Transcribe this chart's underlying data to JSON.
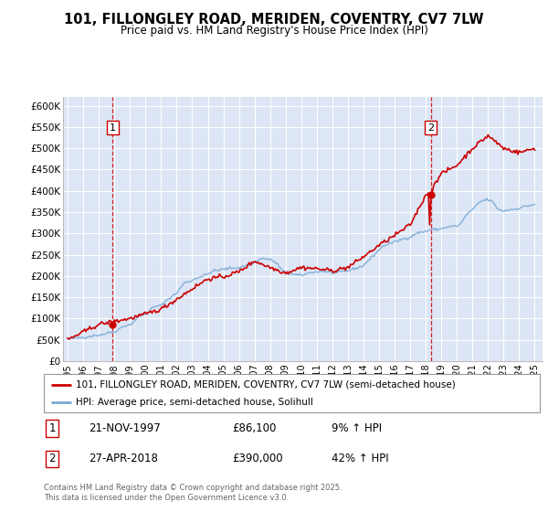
{
  "title": "101, FILLONGLEY ROAD, MERIDEN, COVENTRY, CV7 7LW",
  "subtitle": "Price paid vs. HM Land Registry's House Price Index (HPI)",
  "legend_line1": "101, FILLONGLEY ROAD, MERIDEN, COVENTRY, CV7 7LW (semi-detached house)",
  "legend_line2": "HPI: Average price, semi-detached house, Solihull",
  "footer": "Contains HM Land Registry data © Crown copyright and database right 2025.\nThis data is licensed under the Open Government Licence v3.0.",
  "point1_date": "21-NOV-1997",
  "point1_price": "£86,100",
  "point1_hpi": "9% ↑ HPI",
  "point2_date": "27-APR-2018",
  "point2_price": "£390,000",
  "point2_hpi": "42% ↑ HPI",
  "ylim": [
    0,
    620000
  ],
  "xlim_start": 1994.7,
  "xlim_end": 2025.5,
  "background_color": "#dce6f5",
  "grid_color": "#ffffff",
  "red_line_color": "#cc0000",
  "blue_line_color": "#7baad4",
  "dashed_color": "#cc0000",
  "marker1_x": 1997.89,
  "marker1_y": 86100,
  "marker2_x": 2018.32,
  "marker2_y": 390000,
  "hpi_x": [
    1995.0,
    1995.08,
    1995.17,
    1995.25,
    1995.33,
    1995.42,
    1995.5,
    1995.58,
    1995.67,
    1995.75,
    1995.83,
    1995.92,
    1996.0,
    1996.08,
    1996.17,
    1996.25,
    1996.33,
    1996.42,
    1996.5,
    1996.58,
    1996.67,
    1996.75,
    1996.83,
    1996.92,
    1997.0,
    1997.08,
    1997.17,
    1997.25,
    1997.33,
    1997.42,
    1997.5,
    1997.58,
    1997.67,
    1997.75,
    1997.83,
    1997.92,
    1998.0,
    1998.08,
    1998.17,
    1998.25,
    1998.33,
    1998.42,
    1998.5,
    1998.58,
    1998.67,
    1998.75,
    1998.83,
    1998.92,
    1999.0,
    1999.08,
    1999.17,
    1999.25,
    1999.33,
    1999.42,
    1999.5,
    1999.58,
    1999.67,
    1999.75,
    1999.83,
    1999.92,
    2000.0,
    2000.08,
    2000.17,
    2000.25,
    2000.33,
    2000.42,
    2000.5,
    2000.58,
    2000.67,
    2000.75,
    2000.83,
    2000.92,
    2001.0,
    2001.08,
    2001.17,
    2001.25,
    2001.33,
    2001.42,
    2001.5,
    2001.58,
    2001.67,
    2001.75,
    2001.83,
    2001.92,
    2002.0,
    2002.08,
    2002.17,
    2002.25,
    2002.33,
    2002.42,
    2002.5,
    2002.58,
    2002.67,
    2002.75,
    2002.83,
    2002.92,
    2003.0,
    2003.08,
    2003.17,
    2003.25,
    2003.33,
    2003.42,
    2003.5,
    2003.58,
    2003.67,
    2003.75,
    2003.83,
    2003.92,
    2004.0,
    2004.08,
    2004.17,
    2004.25,
    2004.33,
    2004.42,
    2004.5,
    2004.58,
    2004.67,
    2004.75,
    2004.83,
    2004.92,
    2005.0,
    2005.08,
    2005.17,
    2005.25,
    2005.33,
    2005.42,
    2005.5,
    2005.58,
    2005.67,
    2005.75,
    2005.83,
    2005.92,
    2006.0,
    2006.08,
    2006.17,
    2006.25,
    2006.33,
    2006.42,
    2006.5,
    2006.58,
    2006.67,
    2006.75,
    2006.83,
    2006.92,
    2007.0,
    2007.08,
    2007.17,
    2007.25,
    2007.33,
    2007.42,
    2007.5,
    2007.58,
    2007.67,
    2007.75,
    2007.83,
    2007.92,
    2008.0,
    2008.08,
    2008.17,
    2008.25,
    2008.33,
    2008.42,
    2008.5,
    2008.58,
    2008.67,
    2008.75,
    2008.83,
    2008.92,
    2009.0,
    2009.08,
    2009.17,
    2009.25,
    2009.33,
    2009.42,
    2009.5,
    2009.58,
    2009.67,
    2009.75,
    2009.83,
    2009.92,
    2010.0,
    2010.08,
    2010.17,
    2010.25,
    2010.33,
    2010.42,
    2010.5,
    2010.58,
    2010.67,
    2010.75,
    2010.83,
    2010.92,
    2011.0,
    2011.08,
    2011.17,
    2011.25,
    2011.33,
    2011.42,
    2011.5,
    2011.58,
    2011.67,
    2011.75,
    2011.83,
    2011.92,
    2012.0,
    2012.08,
    2012.17,
    2012.25,
    2012.33,
    2012.42,
    2012.5,
    2012.58,
    2012.67,
    2012.75,
    2012.83,
    2012.92,
    2013.0,
    2013.08,
    2013.17,
    2013.25,
    2013.33,
    2013.42,
    2013.5,
    2013.58,
    2013.67,
    2013.75,
    2013.83,
    2013.92,
    2014.0,
    2014.08,
    2014.17,
    2014.25,
    2014.33,
    2014.42,
    2014.5,
    2014.58,
    2014.67,
    2014.75,
    2014.83,
    2014.92,
    2015.0,
    2015.08,
    2015.17,
    2015.25,
    2015.33,
    2015.42,
    2015.5,
    2015.58,
    2015.67,
    2015.75,
    2015.83,
    2015.92,
    2016.0,
    2016.08,
    2016.17,
    2016.25,
    2016.33,
    2016.42,
    2016.5,
    2016.58,
    2016.67,
    2016.75,
    2016.83,
    2016.92,
    2017.0,
    2017.08,
    2017.17,
    2017.25,
    2017.33,
    2017.42,
    2017.5,
    2017.58,
    2017.67,
    2017.75,
    2017.83,
    2017.92,
    2018.0,
    2018.08,
    2018.17,
    2018.25,
    2018.33,
    2018.42,
    2018.5,
    2018.58,
    2018.67,
    2018.75,
    2018.83,
    2018.92,
    2019.0,
    2019.08,
    2019.17,
    2019.25,
    2019.33,
    2019.42,
    2019.5,
    2019.58,
    2019.67,
    2019.75,
    2019.83,
    2019.92,
    2020.0,
    2020.08,
    2020.17,
    2020.25,
    2020.33,
    2020.42,
    2020.5,
    2020.58,
    2020.67,
    2020.75,
    2020.83,
    2020.92,
    2021.0,
    2021.08,
    2021.17,
    2021.25,
    2021.33,
    2021.42,
    2021.5,
    2021.58,
    2021.67,
    2021.75,
    2021.83,
    2021.92,
    2022.0,
    2022.08,
    2022.17,
    2022.25,
    2022.33,
    2022.42,
    2022.5,
    2022.58,
    2022.67,
    2022.75,
    2022.83,
    2022.92,
    2023.0,
    2023.08,
    2023.17,
    2023.25,
    2023.33,
    2023.42,
    2023.5,
    2023.58,
    2023.67,
    2023.75,
    2023.83,
    2023.92,
    2024.0,
    2024.08,
    2024.17,
    2024.25,
    2024.33,
    2024.42,
    2024.5,
    2024.58,
    2024.67,
    2024.75,
    2024.83,
    2024.92,
    2025.0
  ],
  "hpi_y": [
    51000,
    51500,
    52000,
    52500,
    53000,
    53500,
    54000,
    54200,
    54500,
    54800,
    55000,
    55300,
    55600,
    56000,
    56500,
    57000,
    57500,
    58000,
    58500,
    59000,
    59500,
    60000,
    60200,
    60500,
    61000,
    61500,
    62000,
    62500,
    63000,
    64000,
    65000,
    66000,
    67000,
    67500,
    68000,
    68200,
    68500,
    70000,
    72000,
    74000,
    76000,
    78000,
    80000,
    82000,
    83000,
    83500,
    84000,
    84500,
    85000,
    87000,
    90000,
    93000,
    96000,
    99000,
    102000,
    105000,
    107000,
    108000,
    109000,
    109500,
    110000,
    112000,
    115000,
    118000,
    121000,
    124000,
    126000,
    127000,
    128000,
    129000,
    129500,
    130000,
    131000,
    133000,
    136000,
    139000,
    142000,
    145000,
    147000,
    149000,
    151000,
    153000,
    155000,
    157000,
    160000,
    164000,
    168000,
    172000,
    176000,
    180000,
    183000,
    185000,
    186000,
    187000,
    187500,
    188000,
    189000,
    191000,
    193000,
    195000,
    196000,
    197000,
    198000,
    199000,
    200000,
    201000,
    202000,
    203000,
    204000,
    206000,
    208000,
    210000,
    211000,
    212000,
    212500,
    213000,
    213500,
    214000,
    214500,
    215000,
    215500,
    216000,
    216500,
    217000,
    217500,
    218000,
    218200,
    218400,
    218600,
    218800,
    219000,
    219200,
    219400,
    220000,
    221000,
    222000,
    223000,
    224000,
    225000,
    226000,
    227000,
    228000,
    229000,
    230000,
    232000,
    234000,
    236000,
    238000,
    239000,
    240000,
    240500,
    241000,
    241000,
    240000,
    239000,
    238500,
    238000,
    237000,
    236000,
    234000,
    232000,
    229000,
    226000,
    222000,
    218000,
    214000,
    211000,
    209000,
    207000,
    206000,
    205500,
    205000,
    204500,
    204000,
    203500,
    203000,
    202500,
    202000,
    201500,
    201000,
    201500,
    202000,
    203000,
    204000,
    205000,
    206000,
    207000,
    208000,
    208500,
    209000,
    209000,
    209000,
    209000,
    209500,
    210000,
    210500,
    211000,
    211000,
    210500,
    210000,
    209500,
    209000,
    208500,
    208000,
    207500,
    207000,
    207000,
    207500,
    208000,
    208500,
    209000,
    209500,
    210000,
    210500,
    211000,
    211500,
    212000,
    213000,
    214000,
    215000,
    216000,
    217000,
    218000,
    219000,
    220000,
    221000,
    222000,
    223000,
    225000,
    228000,
    231000,
    234000,
    237000,
    240000,
    243000,
    246000,
    249000,
    252000,
    255000,
    258000,
    261000,
    264000,
    267000,
    270000,
    272000,
    273000,
    274000,
    275000,
    276000,
    277000,
    278000,
    279000,
    280000,
    281000,
    282000,
    283000,
    284000,
    285000,
    286000,
    287000,
    288000,
    289000,
    289500,
    290000,
    291000,
    293000,
    295000,
    297000,
    299000,
    300000,
    301000,
    302000,
    302500,
    303000,
    303500,
    304000,
    305000,
    306000,
    307000,
    308000,
    308500,
    309000,
    309000,
    309000,
    309000,
    309000,
    309500,
    310000,
    311000,
    312000,
    313000,
    314000,
    314500,
    315000,
    315500,
    316000,
    316500,
    317000,
    317000,
    317000,
    317000,
    318000,
    320000,
    323000,
    327000,
    332000,
    337000,
    342000,
    346000,
    349000,
    351000,
    353000,
    355000,
    358000,
    362000,
    366000,
    369000,
    372000,
    374000,
    376000,
    377000,
    378000,
    378500,
    379000,
    379000,
    378000,
    377000,
    375000,
    372000,
    368000,
    364000,
    360000,
    357000,
    355000,
    354000,
    353000,
    353000,
    353500,
    354000,
    354500,
    355000,
    355500,
    356000,
    356500,
    357000,
    357500,
    358000,
    358500,
    359000,
    360000,
    361000,
    362000,
    363000,
    364000,
    364500,
    365000,
    365500,
    366000,
    366500,
    367000,
    368000
  ],
  "price_x_annual": [
    1995,
    1997,
    1998,
    1999,
    2000,
    2001,
    2002,
    2003,
    2004,
    2005,
    2006,
    2007,
    2008,
    2009,
    2010,
    2011,
    2012,
    2013,
    2014,
    2015,
    2016,
    2017,
    2018,
    2019,
    2020,
    2021,
    2022,
    2023,
    2024,
    2025
  ],
  "price_y_annual": [
    50000,
    86100,
    93000,
    100000,
    110000,
    122000,
    145000,
    170000,
    193000,
    198000,
    210000,
    235000,
    220000,
    207000,
    220000,
    217000,
    212000,
    220000,
    245000,
    272000,
    295000,
    320000,
    390000,
    440000,
    460000,
    500000,
    530000,
    500000,
    490000,
    500000
  ]
}
